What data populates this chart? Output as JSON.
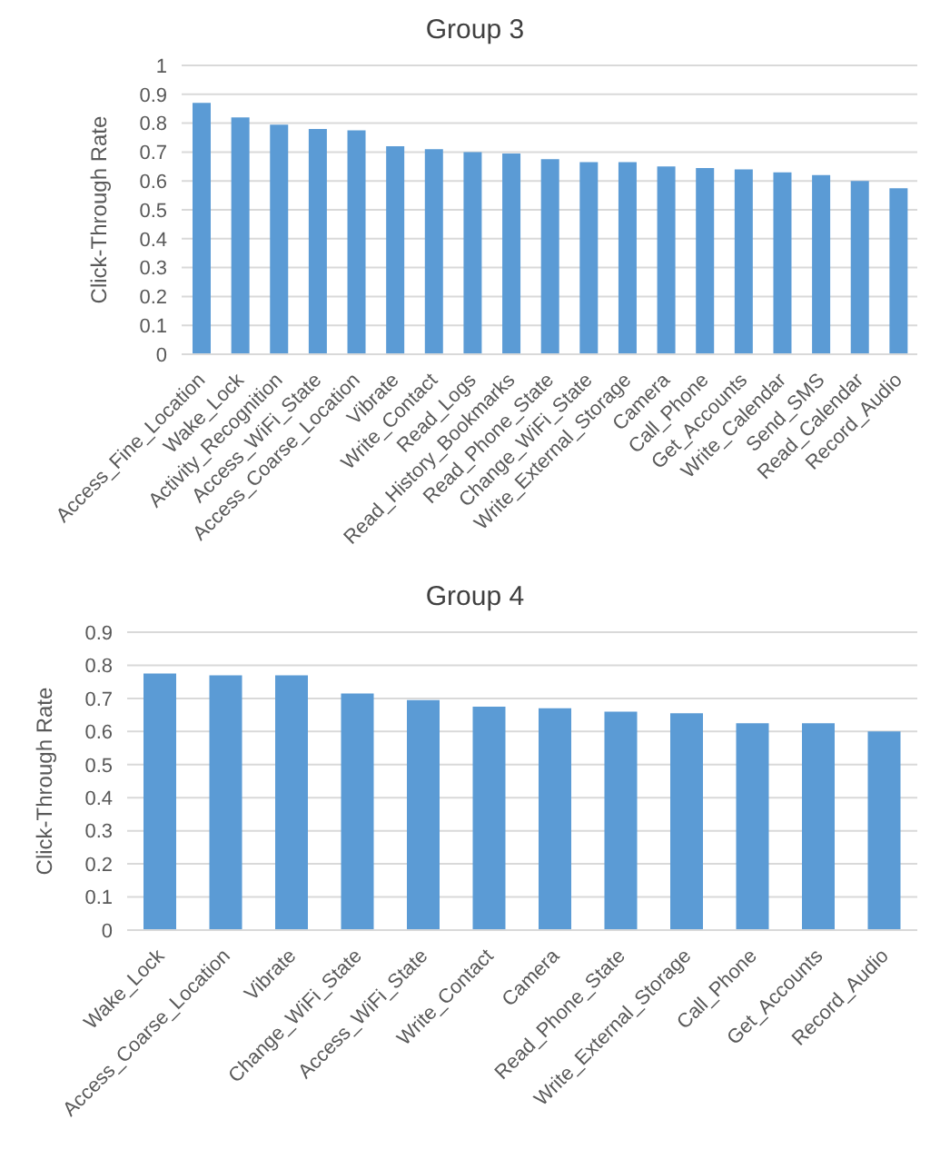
{
  "chart_data": [
    {
      "type": "bar",
      "title": "Group 3",
      "ylabel": "Click-Through Rate",
      "categories": [
        "Access_Fine_Location",
        "Wake_Lock",
        "Activity_Recognition",
        "Access_WiFi_State",
        "Access_Coarse_Location",
        "Vibrate",
        "Write_Contact",
        "Read_Logs",
        "Read_History_Bookmarks",
        "Read_Phone_State",
        "Change_WiFi_State",
        "Write_External_Storage",
        "Camera",
        "Call_Phone",
        "Get_Accounts",
        "Write_Calendar",
        "Send_SMS",
        "Read_Calendar",
        "Record_Audio"
      ],
      "values": [
        0.87,
        0.82,
        0.795,
        0.78,
        0.775,
        0.72,
        0.71,
        0.7,
        0.695,
        0.675,
        0.665,
        0.665,
        0.65,
        0.645,
        0.64,
        0.63,
        0.62,
        0.6,
        0.575
      ],
      "color": "#5b9bd5",
      "ylim": [
        0,
        1
      ],
      "yticks": [
        0,
        0.1,
        0.2,
        0.3,
        0.4,
        0.5,
        0.6,
        0.7,
        0.8,
        0.9,
        1
      ],
      "grid": "y"
    },
    {
      "type": "bar",
      "title": "Group 4",
      "ylabel": "Click-Through Rate",
      "categories": [
        "Wake_Lock",
        "Access_Coarse_Location",
        "Vibrate",
        "Change_WiFi_State",
        "Access_WiFi_State",
        "Write_Contact",
        "Camera",
        "Read_Phone_State",
        "Write_External_Storage",
        "Call_Phone",
        "Get_Accounts",
        "Record_Audio"
      ],
      "values": [
        0.775,
        0.77,
        0.77,
        0.715,
        0.695,
        0.675,
        0.67,
        0.66,
        0.655,
        0.625,
        0.625,
        0.6
      ],
      "color": "#5b9bd5",
      "ylim": [
        0,
        0.9
      ],
      "yticks": [
        0,
        0.1,
        0.2,
        0.3,
        0.4,
        0.5,
        0.6,
        0.7,
        0.8,
        0.9
      ],
      "grid": "y"
    }
  ]
}
